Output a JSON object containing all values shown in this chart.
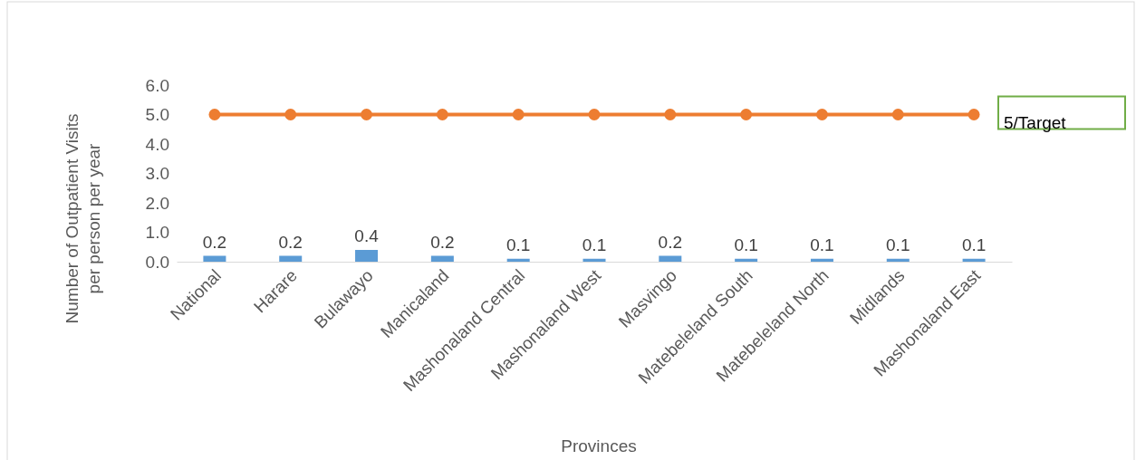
{
  "chart_data": {
    "type": "bar",
    "xlabel": "Provinces",
    "ylabel": "Number of Outpatient Visits per person per year",
    "categories": [
      "National",
      "Harare",
      "Bulawayo",
      "Manicaland",
      "Mashonaland Central",
      "Mashonaland West",
      "Masvingo",
      "Matebeleland South",
      "Matebeleland North",
      "Midlands",
      "Mashonaland East"
    ],
    "series": [
      {
        "color": "#5b9bd5",
        "values": [
          0.2,
          0.2,
          0.4,
          0.2,
          0.1,
          0.1,
          0.2,
          0.1,
          0.1,
          0.1,
          0.1
        ],
        "value_labels": [
          "0.2",
          "0.2",
          "0.4",
          "0.2",
          "0.1",
          "0.1",
          "0.2",
          "0.1",
          "0.1",
          "0.1",
          "0.1"
        ]
      },
      {
        "type": "line",
        "name": "5/Target",
        "color": "#ed7d31",
        "values": [
          5,
          5,
          5,
          5,
          5,
          5,
          5,
          5,
          5,
          5,
          5
        ],
        "marker": "circle",
        "line_style": "solid"
      }
    ],
    "ylim": [
      0,
      6
    ],
    "yticks": [
      {
        "value": 0,
        "label": "0.0"
      },
      {
        "value": 1,
        "label": "1.0"
      },
      {
        "value": 2,
        "label": "2.0"
      },
      {
        "value": 3,
        "label": "3.0"
      },
      {
        "value": 4,
        "label": "4.0"
      },
      {
        "value": 5,
        "label": "5.0"
      },
      {
        "value": 6,
        "label": "6.0"
      }
    ],
    "grid": false
  }
}
